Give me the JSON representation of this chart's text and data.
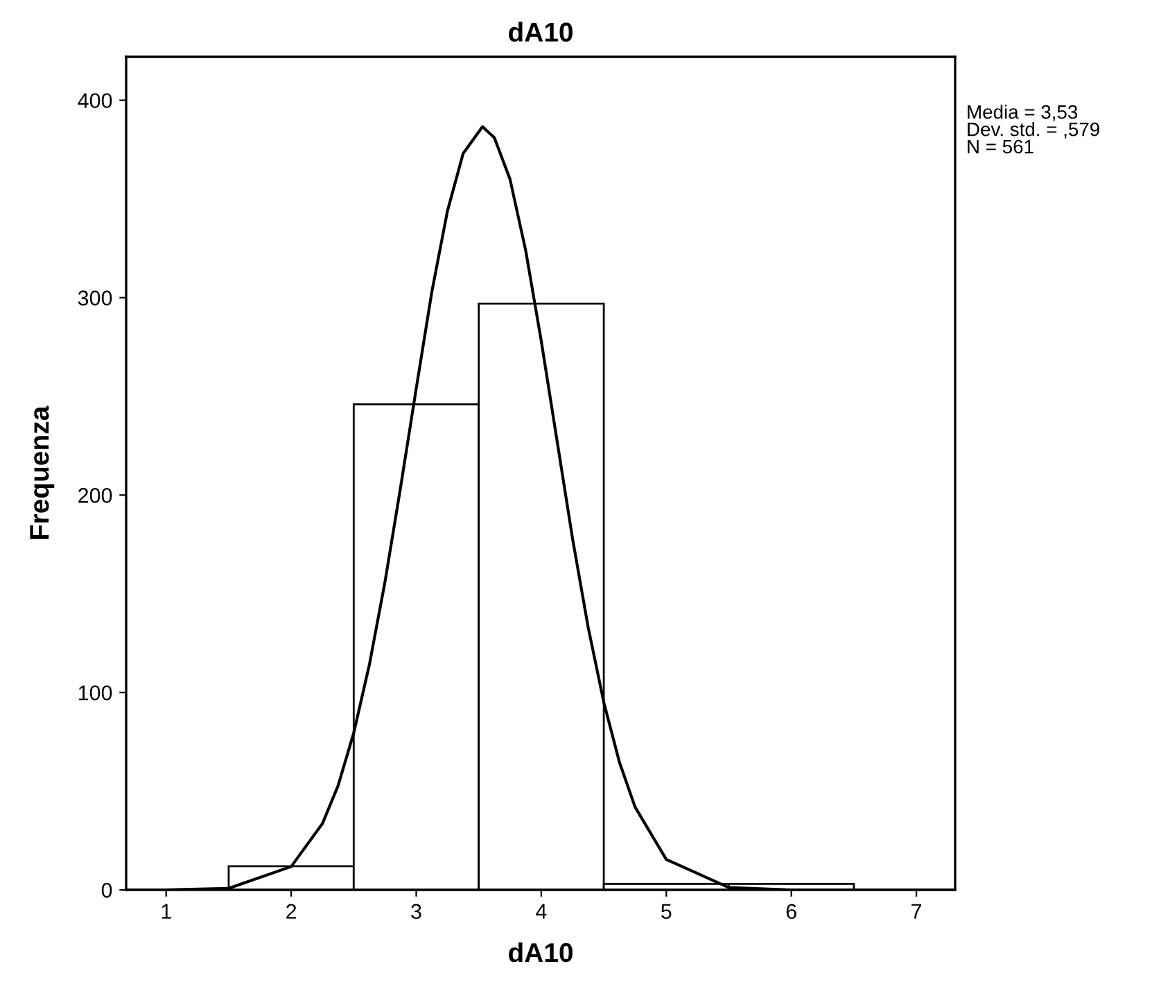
{
  "chart_data": {
    "type": "histogram",
    "title": "dA10",
    "xlabel": "dA10",
    "ylabel": "Frequenza",
    "bins": [
      1.5,
      2.5,
      3.5,
      4.5,
      5.5,
      6.5
    ],
    "values": [
      12,
      246,
      297,
      3,
      3
    ],
    "color": "#ffffff",
    "series": [
      {
        "type": "line",
        "color": "#000000",
        "x": [
          0.7,
          1.0,
          1.5,
          2.0,
          2.25,
          2.375,
          2.5,
          2.625,
          2.75,
          2.875,
          3.0,
          3.125,
          3.25,
          3.375,
          3.53,
          3.625,
          3.75,
          3.875,
          4.0,
          4.125,
          4.25,
          4.375,
          4.5,
          4.625,
          4.75,
          5.0,
          5.5,
          6.0,
          7.3
        ],
        "values": [
          0,
          0,
          0.8,
          11.8,
          33.6,
          52.8,
          79.5,
          114,
          156,
          204,
          254,
          303,
          344,
          373,
          386.6,
          381,
          360,
          324,
          278,
          228,
          178,
          133,
          95,
          64.7,
          42,
          15.4,
          1.2,
          0,
          0
        ]
      }
    ],
    "xlim": [
      0.68,
      7.31
    ],
    "ylim": [
      0,
      422
    ],
    "xticks": [
      1,
      2,
      3,
      4,
      5,
      6,
      7
    ],
    "yticks": [
      0,
      100,
      200,
      300,
      400
    ],
    "grid": false,
    "legend": false,
    "annotations": [
      "Media = 3,53",
      "Dev. std. = ,579",
      "N = 561"
    ]
  }
}
